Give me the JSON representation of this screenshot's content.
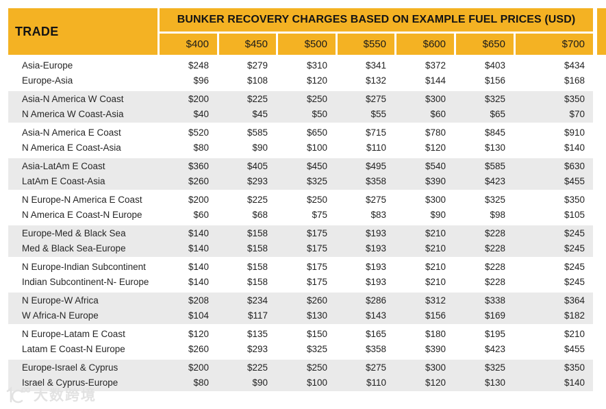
{
  "colors": {
    "accent": "#F4B223",
    "stripe": "#EAEAEA",
    "text": "#262626"
  },
  "watermark": {
    "text": "大数跨境"
  },
  "chart_data": {
    "type": "table",
    "title": "BUNKER RECOVERY CHARGES BASED ON EXAMPLE FUEL PRICES (USD)",
    "corner_label": "TRADE",
    "columns": [
      "$400",
      "$450",
      "$500",
      "$550",
      "$600",
      "$650",
      "$700"
    ],
    "value_prefix": "$",
    "layout": {
      "striped_groups": "even groups shaded",
      "header_color": "#F4B223"
    },
    "groups": [
      {
        "rows": [
          {
            "trade": "Asia-Europe",
            "values": [
              248,
              279,
              310,
              341,
              372,
              403,
              434
            ]
          },
          {
            "trade": "Europe-Asia",
            "values": [
              96,
              108,
              120,
              132,
              144,
              156,
              168
            ]
          }
        ]
      },
      {
        "rows": [
          {
            "trade": "Asia-N America W Coast",
            "values": [
              200,
              225,
              250,
              275,
              300,
              325,
              350
            ]
          },
          {
            "trade": "N America W Coast-Asia",
            "values": [
              40,
              45,
              50,
              55,
              60,
              65,
              70
            ]
          }
        ]
      },
      {
        "rows": [
          {
            "trade": "Asia-N America E Coast",
            "values": [
              520,
              585,
              650,
              715,
              780,
              845,
              910
            ]
          },
          {
            "trade": "N America E Coast-Asia",
            "values": [
              80,
              90,
              100,
              110,
              120,
              130,
              140
            ]
          }
        ]
      },
      {
        "rows": [
          {
            "trade": "Asia-LatAm E Coast",
            "values": [
              360,
              405,
              450,
              495,
              540,
              585,
              630
            ]
          },
          {
            "trade": "LatAm E Coast-Asia",
            "values": [
              260,
              293,
              325,
              358,
              390,
              423,
              455
            ]
          }
        ]
      },
      {
        "rows": [
          {
            "trade": "N Europe-N America E Coast",
            "values": [
              200,
              225,
              250,
              275,
              300,
              325,
              350
            ]
          },
          {
            "trade": "N America E Coast-N Europe",
            "values": [
              60,
              68,
              75,
              83,
              90,
              98,
              105
            ]
          }
        ]
      },
      {
        "rows": [
          {
            "trade": "Europe-Med & Black Sea",
            "values": [
              140,
              158,
              175,
              193,
              210,
              228,
              245
            ]
          },
          {
            "trade": "Med & Black Sea-Europe",
            "values": [
              140,
              158,
              175,
              193,
              210,
              228,
              245
            ]
          }
        ]
      },
      {
        "rows": [
          {
            "trade": "N Europe-Indian Subcontinent",
            "values": [
              140,
              158,
              175,
              193,
              210,
              228,
              245
            ]
          },
          {
            "trade": "Indian Subcontinent-N- Europe",
            "values": [
              140,
              158,
              175,
              193,
              210,
              228,
              245
            ]
          }
        ]
      },
      {
        "rows": [
          {
            "trade": "N Europe-W Africa",
            "values": [
              208,
              234,
              260,
              286,
              312,
              338,
              364
            ]
          },
          {
            "trade": "W Africa-N Europe",
            "values": [
              104,
              117,
              130,
              143,
              156,
              169,
              182
            ]
          }
        ]
      },
      {
        "rows": [
          {
            "trade": "N Europe-Latam E Coast",
            "values": [
              120,
              135,
              150,
              165,
              180,
              195,
              210
            ]
          },
          {
            "trade": "Latam E Coast-N Europe",
            "values": [
              260,
              293,
              325,
              358,
              390,
              423,
              455
            ]
          }
        ]
      },
      {
        "rows": [
          {
            "trade": "Europe-Israel & Cyprus",
            "values": [
              200,
              225,
              250,
              275,
              300,
              325,
              350
            ]
          },
          {
            "trade": "Israel & Cyprus-Europe",
            "values": [
              80,
              90,
              100,
              110,
              120,
              130,
              140
            ]
          }
        ]
      }
    ]
  }
}
